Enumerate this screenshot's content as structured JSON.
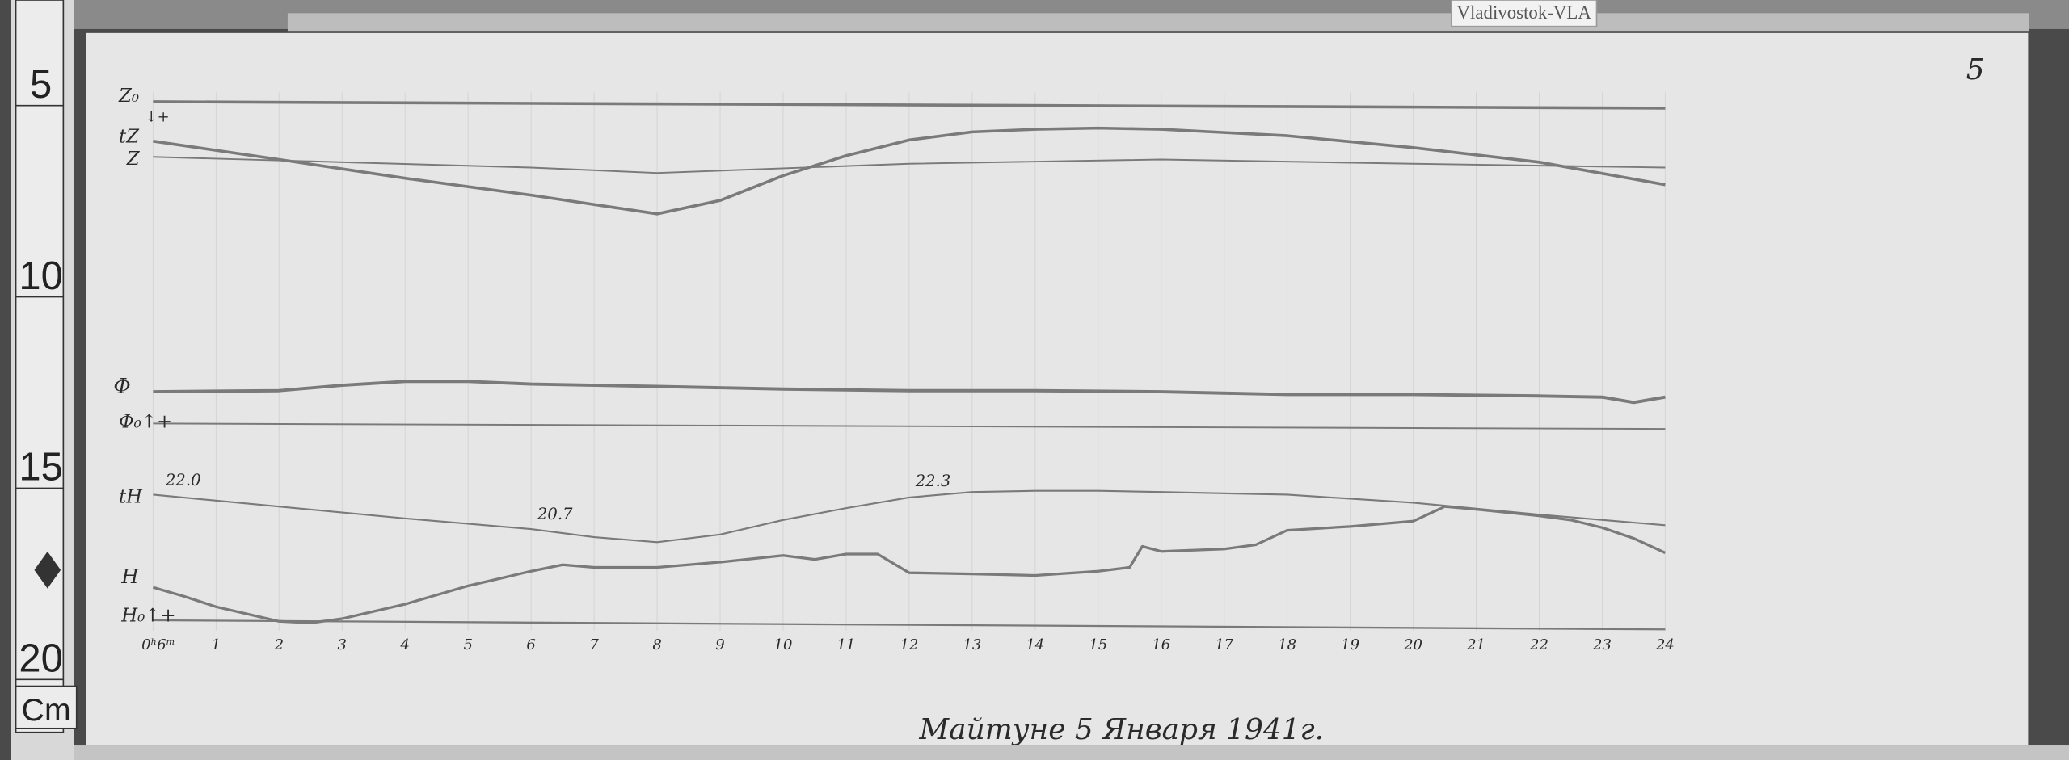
{
  "tag_label": "Vladivostok-VLA",
  "corner_mark": "5",
  "footer": "Майтуне 5 Января 1941г.",
  "ruler": {
    "unit": "Cm",
    "labels": [
      "5",
      "10",
      "15",
      "20"
    ]
  },
  "colors": {
    "paper": "#e6e6e6",
    "trace": "#7a7a7a",
    "background": "#4a4a4a"
  },
  "trace_labels": {
    "z0": "Z₀",
    "z_dir": "↓+",
    "tz": "tZ",
    "z": "Z",
    "d": "Φ",
    "d0": "Φ₀↑+",
    "th": "tH",
    "h": "H",
    "h0": "H₀↑+"
  },
  "chart_data": {
    "type": "line",
    "title": "",
    "xlabel": "",
    "ylabel": "",
    "x_unit": "hour",
    "y_unit": "cm",
    "xlim": [
      0,
      24
    ],
    "ylim_cm": [
      5,
      20
    ],
    "x_tick_labels": [
      "0ʰ6ᵐ",
      "1",
      "2",
      "3",
      "4",
      "5",
      "6",
      "7",
      "8",
      "9",
      "10",
      "11",
      "12",
      "13",
      "14",
      "15",
      "16",
      "17",
      "18",
      "19",
      "20",
      "21",
      "22",
      "23",
      "24"
    ],
    "annotations": [
      {
        "text": "22.0",
        "series": "tH",
        "x": 0.2
      },
      {
        "text": "20.7",
        "series": "tH",
        "x": 6.1
      },
      {
        "text": "22.3",
        "series": "tH",
        "x": 12.1
      }
    ],
    "series": [
      {
        "name": "Z₀",
        "x": [
          0,
          24
        ],
        "y": [
          5.59,
          5.76
        ]
      },
      {
        "name": "tZ",
        "x": [
          0,
          2,
          4,
          6,
          8,
          9,
          10,
          11,
          12,
          13,
          14,
          15,
          16,
          18,
          20,
          22,
          24
        ],
        "y": [
          6.62,
          7.1,
          7.59,
          8.03,
          8.52,
          8.17,
          7.52,
          7.0,
          6.59,
          6.38,
          6.31,
          6.28,
          6.31,
          6.48,
          6.79,
          7.17,
          7.76
        ]
      },
      {
        "name": "Z",
        "x": [
          0,
          6,
          8,
          12,
          16,
          20,
          24
        ],
        "y": [
          7.03,
          7.31,
          7.45,
          7.21,
          7.1,
          7.21,
          7.31
        ]
      },
      {
        "name": "Φ",
        "x": [
          0,
          2,
          3,
          4,
          5,
          6,
          8,
          10,
          12,
          14,
          16,
          18,
          20,
          22,
          23,
          23.5,
          24
        ],
        "y": [
          13.17,
          13.14,
          13.0,
          12.9,
          12.9,
          12.97,
          13.03,
          13.1,
          13.14,
          13.14,
          13.17,
          13.24,
          13.24,
          13.28,
          13.31,
          13.45,
          13.31
        ]
      },
      {
        "name": "Φ₀",
        "x": [
          0,
          24
        ],
        "y": [
          14.0,
          14.14
        ]
      },
      {
        "name": "tH",
        "x": [
          0,
          2,
          4,
          6,
          7,
          8,
          9,
          10,
          11,
          12,
          13,
          14,
          15,
          16,
          18,
          20,
          22,
          24
        ],
        "y": [
          15.86,
          16.17,
          16.48,
          16.76,
          16.97,
          17.1,
          16.9,
          16.52,
          16.21,
          15.93,
          15.79,
          15.76,
          15.76,
          15.79,
          15.86,
          16.07,
          16.38,
          16.66
        ]
      },
      {
        "name": "H",
        "x": [
          0,
          0.5,
          1,
          2,
          2.5,
          3,
          4,
          5,
          6,
          6.5,
          7,
          8,
          9,
          10,
          10.5,
          11,
          11.5,
          12,
          13,
          14,
          15,
          15.5,
          15.7,
          16,
          17,
          17.5,
          18,
          19,
          20,
          20.5,
          21,
          22,
          22.5,
          23,
          23.5,
          24
        ],
        "y": [
          18.28,
          18.52,
          18.79,
          19.17,
          19.21,
          19.1,
          18.72,
          18.24,
          17.86,
          17.69,
          17.76,
          17.76,
          17.62,
          17.45,
          17.55,
          17.41,
          17.41,
          17.9,
          17.93,
          17.97,
          17.86,
          17.76,
          17.21,
          17.34,
          17.28,
          17.17,
          16.79,
          16.69,
          16.55,
          16.17,
          16.24,
          16.41,
          16.52,
          16.72,
          17.0,
          17.38
        ]
      },
      {
        "name": "H₀",
        "x": [
          0,
          24
        ],
        "y": [
          19.14,
          19.38
        ]
      }
    ]
  }
}
